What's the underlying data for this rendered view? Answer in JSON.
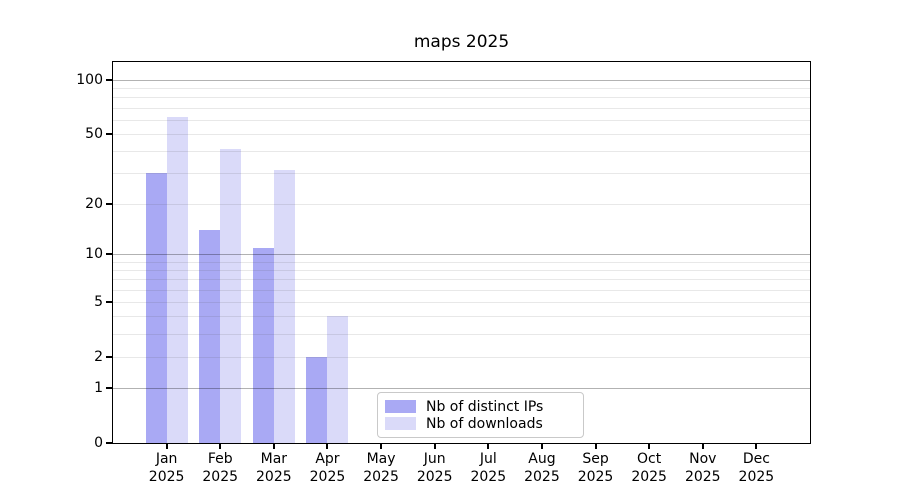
{
  "chart_data": {
    "type": "bar",
    "title": "maps 2025",
    "x_tick_year": "2025",
    "categories": [
      "Jan",
      "Feb",
      "Mar",
      "Apr",
      "May",
      "Jun",
      "Jul",
      "Aug",
      "Sep",
      "Oct",
      "Nov",
      "Dec"
    ],
    "series": [
      {
        "name": "Nb of distinct IPs",
        "color": "#a9a9f4",
        "values": [
          30,
          14,
          11,
          2,
          0,
          0,
          0,
          0,
          0,
          0,
          0,
          0
        ]
      },
      {
        "name": "Nb of downloads",
        "color": "#dadaf9",
        "values": [
          62,
          41,
          31,
          4,
          0,
          0,
          0,
          0,
          0,
          0,
          0,
          0
        ]
      }
    ],
    "yscale": "log10(1+x)",
    "ylim": [
      0,
      126
    ],
    "y_ticks": [
      0,
      1,
      2,
      5,
      10,
      20,
      50,
      100
    ],
    "y_major_gridlines": [
      1,
      10,
      100
    ],
    "y_minor_gridlines": [
      2,
      3,
      4,
      5,
      6,
      7,
      8,
      9,
      20,
      30,
      40,
      50,
      60,
      70,
      80,
      90
    ],
    "grid": true,
    "legend_position": "lower center, inside axes"
  },
  "colors": {
    "axis": "#000000",
    "major_grid": "rgba(0,0,0,0.30)",
    "minor_grid": "rgba(80,80,80,0.13)",
    "legend_border": "#c9c9c9",
    "background": "#ffffff"
  }
}
